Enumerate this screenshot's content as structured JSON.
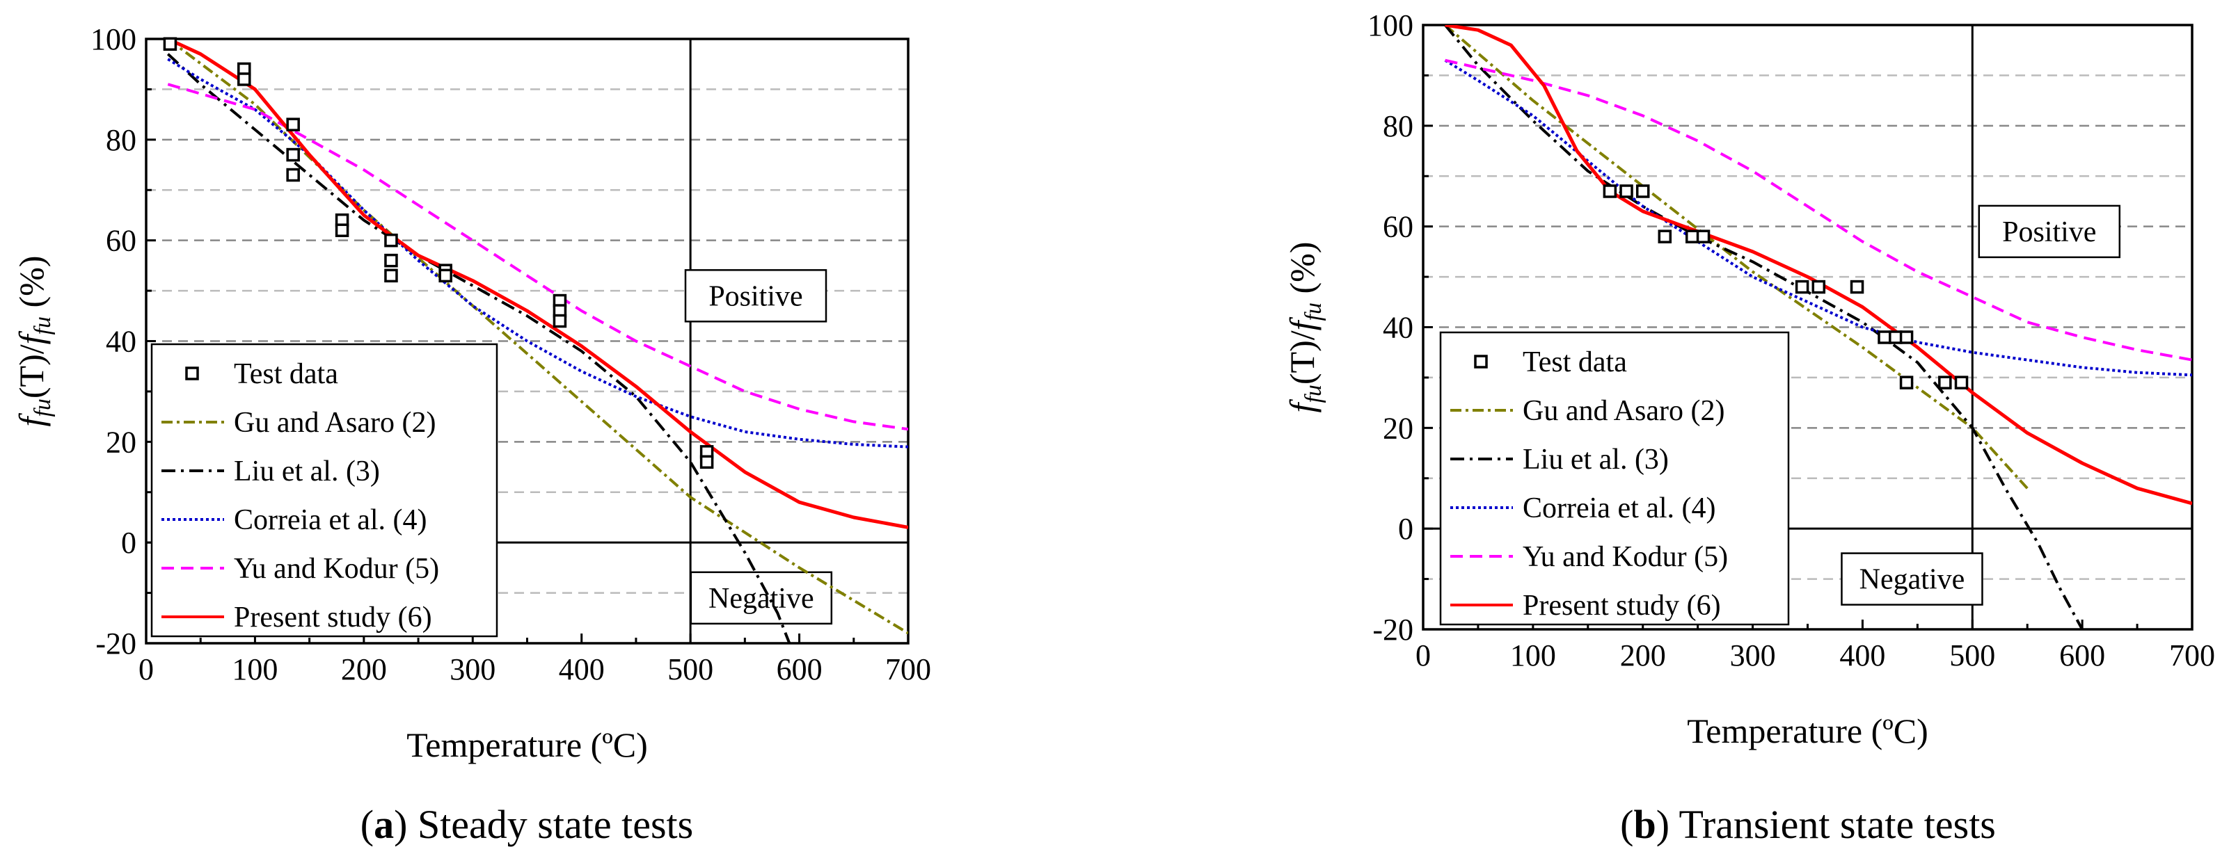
{
  "chart_data": [
    {
      "type": "line",
      "caption_letter": "a",
      "caption_text": " Steady state tests",
      "xlabel": "Temperature (ºC)",
      "ylabel_parts": [
        "f",
        "fu",
        "(T)/",
        "f",
        "fu",
        " (%)"
      ],
      "xlim": [
        0,
        700
      ],
      "ylim": [
        -20,
        100
      ],
      "xticks": [
        0,
        100,
        200,
        300,
        400,
        500,
        600,
        700
      ],
      "yticks": [
        -20,
        0,
        20,
        40,
        60,
        80,
        100
      ],
      "grid": "horizontal dashed every 10",
      "regions": [
        {
          "label": "Positive",
          "x": 560,
          "y": 49
        },
        {
          "label": "Negative",
          "x": 565,
          "y": -11
        }
      ],
      "divider_x": 500,
      "legend_position": "bottom-left",
      "test_data": {
        "name": "Test data",
        "points": [
          [
            22,
            99
          ],
          [
            90,
            94
          ],
          [
            90,
            92
          ],
          [
            135,
            83
          ],
          [
            135,
            77
          ],
          [
            135,
            73
          ],
          [
            180,
            64
          ],
          [
            180,
            62
          ],
          [
            225,
            60
          ],
          [
            225,
            56
          ],
          [
            225,
            53
          ],
          [
            275,
            54
          ],
          [
            275,
            53
          ],
          [
            380,
            48
          ],
          [
            380,
            46
          ],
          [
            380,
            44
          ],
          [
            515,
            18
          ],
          [
            515,
            16
          ]
        ]
      },
      "series": [
        {
          "name": "Gu and Asaro (2)",
          "color": "#808000",
          "dash": "16,6,4,6",
          "points": [
            [
              20,
              100
            ],
            [
              100,
              87
            ],
            [
              200,
              66
            ],
            [
              300,
              47
            ],
            [
              400,
              28
            ],
            [
              500,
              9
            ],
            [
              600,
              -5
            ],
            [
              700,
              -18
            ]
          ]
        },
        {
          "name": "Liu et al. (3)",
          "color": "#000000",
          "dash": "20,8,4,8",
          "points": [
            [
              20,
              97
            ],
            [
              50,
              91
            ],
            [
              100,
              82
            ],
            [
              150,
              73
            ],
            [
              200,
              64
            ],
            [
              250,
              57
            ],
            [
              300,
              51
            ],
            [
              350,
              45
            ],
            [
              400,
              38
            ],
            [
              450,
              29
            ],
            [
              500,
              16
            ],
            [
              550,
              -2
            ],
            [
              580,
              -14
            ],
            [
              600,
              -25
            ]
          ]
        },
        {
          "name": "Correia et al. (4)",
          "color": "#0000cc",
          "dash": "4,4",
          "points": [
            [
              20,
              96
            ],
            [
              50,
              92
            ],
            [
              100,
              86
            ],
            [
              150,
              77
            ],
            [
              200,
              66
            ],
            [
              250,
              56
            ],
            [
              300,
              47
            ],
            [
              350,
              40
            ],
            [
              400,
              34
            ],
            [
              450,
              29
            ],
            [
              500,
              25
            ],
            [
              550,
              22
            ],
            [
              600,
              20.5
            ],
            [
              650,
              19.5
            ],
            [
              700,
              19
            ]
          ]
        },
        {
          "name": "Yu and Kodur (5)",
          "color": "#ff00ff",
          "dash": "18,10",
          "points": [
            [
              20,
              91
            ],
            [
              100,
              86
            ],
            [
              150,
              80
            ],
            [
              200,
              74
            ],
            [
              250,
              67
            ],
            [
              300,
              60
            ],
            [
              350,
              53
            ],
            [
              400,
              46
            ],
            [
              450,
              40
            ],
            [
              500,
              35
            ],
            [
              550,
              30
            ],
            [
              600,
              26.5
            ],
            [
              650,
              24
            ],
            [
              700,
              22.5
            ]
          ]
        },
        {
          "name": "Present study (6)",
          "color": "#ff0000",
          "dash": "",
          "points": [
            [
              20,
              100
            ],
            [
              50,
              97
            ],
            [
              100,
              90
            ],
            [
              150,
              77
            ],
            [
              200,
              65
            ],
            [
              250,
              57
            ],
            [
              300,
              52
            ],
            [
              350,
              46
            ],
            [
              400,
              39
            ],
            [
              450,
              31
            ],
            [
              500,
              22
            ],
            [
              550,
              14
            ],
            [
              600,
              8
            ],
            [
              650,
              5
            ],
            [
              700,
              3
            ]
          ]
        }
      ]
    },
    {
      "type": "line",
      "caption_letter": "b",
      "caption_text": " Transient state tests",
      "xlabel": "Temperature (ºC)",
      "ylabel_parts": [
        "f",
        "fu",
        "(T)/",
        "f",
        "fu",
        " (%)"
      ],
      "xlim": [
        0,
        700
      ],
      "ylim": [
        -20,
        100
      ],
      "xticks": [
        0,
        100,
        200,
        300,
        400,
        500,
        600,
        700
      ],
      "yticks": [
        -20,
        0,
        20,
        40,
        60,
        80,
        100
      ],
      "grid": "horizontal dashed every 10",
      "regions": [
        {
          "label": "Positive",
          "x": 570,
          "y": 59
        },
        {
          "label": "Negative",
          "x": 445,
          "y": -10
        }
      ],
      "divider_x": 500,
      "legend_position": "bottom-left",
      "test_data": {
        "name": "Test data",
        "points": [
          [
            170,
            67
          ],
          [
            185,
            67
          ],
          [
            200,
            67
          ],
          [
            220,
            58
          ],
          [
            245,
            58
          ],
          [
            255,
            58
          ],
          [
            345,
            48
          ],
          [
            360,
            48
          ],
          [
            395,
            48
          ],
          [
            420,
            38
          ],
          [
            430,
            38
          ],
          [
            440,
            38
          ],
          [
            440,
            29
          ],
          [
            475,
            29
          ],
          [
            490,
            29
          ]
        ]
      },
      "series": [
        {
          "name": "Gu and Asaro (2)",
          "color": "#808000",
          "dash": "16,6,4,6",
          "points": [
            [
              20,
              100
            ],
            [
              100,
              85
            ],
            [
              200,
              68
            ],
            [
              300,
              51
            ],
            [
              400,
              36
            ],
            [
              450,
              28
            ],
            [
              500,
              20
            ],
            [
              550,
              8
            ]
          ]
        },
        {
          "name": "Liu et al. (3)",
          "color": "#000000",
          "dash": "20,8,4,8",
          "points": [
            [
              20,
              100
            ],
            [
              50,
              92
            ],
            [
              100,
              81
            ],
            [
              150,
              71
            ],
            [
              200,
              64
            ],
            [
              250,
              58
            ],
            [
              300,
              53
            ],
            [
              350,
              47
            ],
            [
              400,
              41
            ],
            [
              450,
              33
            ],
            [
              500,
              20
            ],
            [
              530,
              8
            ],
            [
              560,
              -3
            ],
            [
              580,
              -12
            ],
            [
              600,
              -20
            ]
          ]
        },
        {
          "name": "Correia et al. (4)",
          "color": "#0000cc",
          "dash": "4,4",
          "points": [
            [
              20,
              93
            ],
            [
              50,
              89
            ],
            [
              100,
              82
            ],
            [
              150,
              73
            ],
            [
              200,
              64
            ],
            [
              250,
              57
            ],
            [
              300,
              50
            ],
            [
              350,
              45
            ],
            [
              400,
              40
            ],
            [
              450,
              37
            ],
            [
              500,
              35
            ],
            [
              550,
              33.5
            ],
            [
              600,
              32
            ],
            [
              650,
              31
            ],
            [
              700,
              30.5
            ]
          ]
        },
        {
          "name": "Yu and Kodur (5)",
          "color": "#ff00ff",
          "dash": "18,10",
          "points": [
            [
              20,
              93
            ],
            [
              100,
              89
            ],
            [
              150,
              86
            ],
            [
              200,
              82
            ],
            [
              250,
              77
            ],
            [
              300,
              71
            ],
            [
              350,
              64
            ],
            [
              400,
              57
            ],
            [
              450,
              51
            ],
            [
              500,
              46
            ],
            [
              550,
              41
            ],
            [
              600,
              38
            ],
            [
              650,
              35.5
            ],
            [
              700,
              33.5
            ]
          ]
        },
        {
          "name": "Present study (6)",
          "color": "#ff0000",
          "dash": "",
          "points": [
            [
              20,
              100
            ],
            [
              50,
              99
            ],
            [
              80,
              96
            ],
            [
              110,
              88
            ],
            [
              140,
              75
            ],
            [
              170,
              67
            ],
            [
              200,
              63
            ],
            [
              250,
              59
            ],
            [
              300,
              55
            ],
            [
              350,
              50
            ],
            [
              400,
              44
            ],
            [
              450,
              36
            ],
            [
              500,
              27
            ],
            [
              550,
              19
            ],
            [
              600,
              13
            ],
            [
              650,
              8
            ],
            [
              700,
              5
            ]
          ]
        }
      ]
    }
  ]
}
